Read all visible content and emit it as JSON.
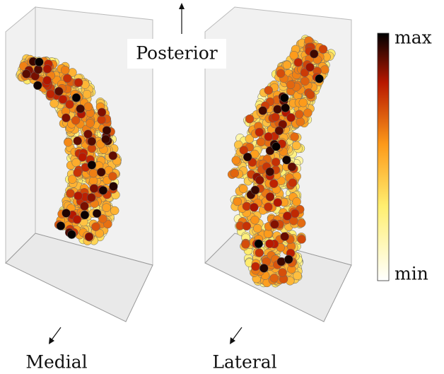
{
  "directions": {
    "posterior": "Posterior",
    "medial": "Medial",
    "lateral": "Lateral"
  },
  "colorbar": {
    "max": "max",
    "min": "min"
  }
}
